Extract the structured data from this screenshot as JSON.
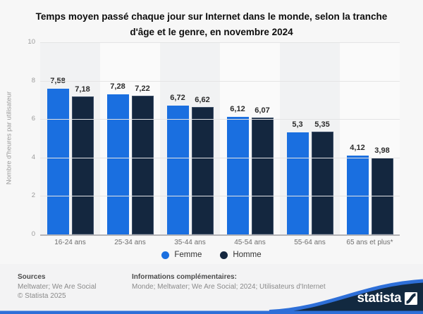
{
  "title": "Temps moyen passé chaque jour sur Internet dans le monde, selon la tranche d'âge et le genre, en novembre 2024",
  "chart_data": {
    "type": "bar",
    "categories": [
      "16-24 ans",
      "25-34 ans",
      "35-44 ans",
      "45-54 ans",
      "55-64 ans",
      "65 ans et plus*"
    ],
    "series": [
      {
        "name": "Femme",
        "color": "#1a6fe0",
        "values": [
          7.58,
          7.28,
          6.72,
          6.12,
          5.3,
          4.12
        ],
        "labels": [
          "7,58",
          "7,28",
          "6,72",
          "6,12",
          "5,3",
          "4,12"
        ]
      },
      {
        "name": "Homme",
        "color": "#14273f",
        "border": "#3d4f68",
        "values": [
          7.18,
          7.22,
          6.62,
          6.07,
          5.35,
          3.98
        ],
        "labels": [
          "7,18",
          "7,22",
          "6,62",
          "6,07",
          "5,35",
          "3,98"
        ]
      }
    ],
    "ylabel": "Nombre d'heures par utilisateur",
    "xlabel": "",
    "ylim": [
      0,
      10
    ],
    "yticks": [
      0,
      2,
      4,
      6,
      8,
      10
    ],
    "grid": true,
    "legend_position": "bottom"
  },
  "footer": {
    "sources_label": "Sources",
    "sources_line1": "Meltwater; We Are Social",
    "sources_line2": "© Statista 2025",
    "info_label": "Informations complémentaires:",
    "info_line": "Monde; Meltwater; We Are Social; 2024; Utilisateurs d'Internet",
    "brand": "statista"
  },
  "colors": {
    "femme": "#1a6fe0",
    "homme": "#14273f",
    "wave_blue": "#2e6fd8",
    "wave_dark": "#122940",
    "background": "#f7f7f7"
  }
}
